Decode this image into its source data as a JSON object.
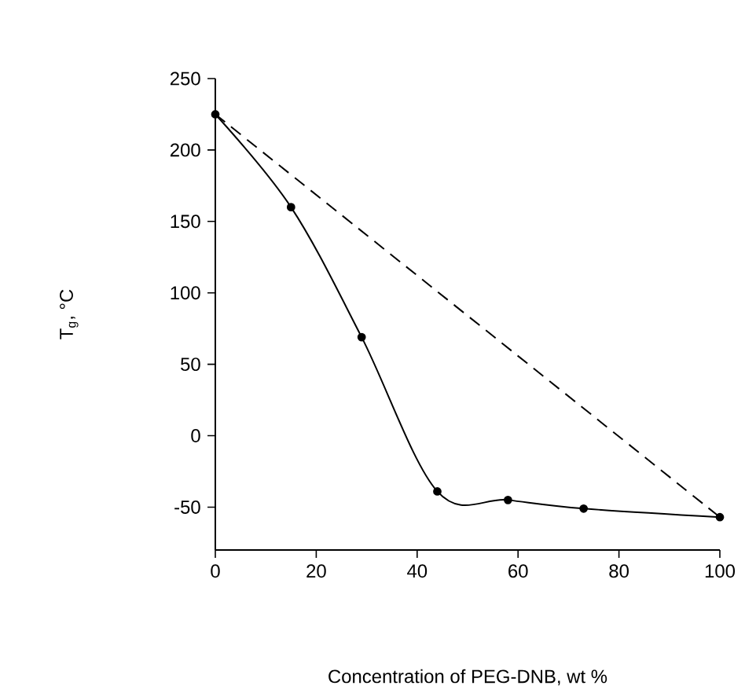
{
  "chart_data": {
    "type": "line",
    "xlabel": "Concentration of PEG-DNB, wt %",
    "ylabel": "T$_{g}$, °C",
    "xlim": [
      0,
      100
    ],
    "ylim": [
      -80,
      250
    ],
    "xticks": [
      0,
      20,
      40,
      60,
      80,
      100
    ],
    "yticks": [
      -50,
      0,
      50,
      100,
      150,
      200,
      250
    ],
    "grid": false,
    "series": [
      {
        "color": "#000000",
        "x": [
          0,
          15,
          29,
          44,
          58,
          73,
          100
        ],
        "values": [
          225,
          160,
          69,
          -39,
          -45,
          -51,
          -57
        ],
        "marker": "circle",
        "line_style": "solid"
      },
      {
        "color": "#000000",
        "x": [
          0,
          100
        ],
        "values": [
          225,
          -57
        ],
        "marker": "none",
        "line_style": "dashed"
      }
    ]
  }
}
